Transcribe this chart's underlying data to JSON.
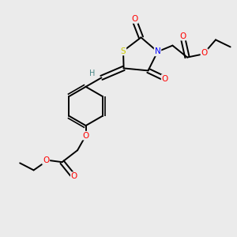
{
  "bg_color": "#ebebeb",
  "atom_colors": {
    "S": "#cccc00",
    "N": "#0000ff",
    "O": "#ff0000",
    "C": "#000000",
    "H": "#4a8888"
  },
  "bond_color": "#000000",
  "figsize": [
    3.0,
    3.0
  ],
  "dpi": 100,
  "lw": 1.4,
  "font": 7.5
}
